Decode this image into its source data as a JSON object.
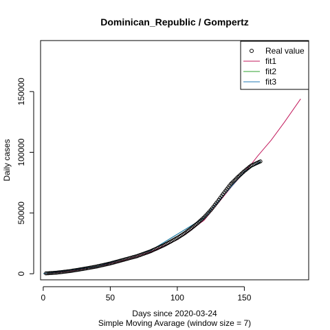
{
  "chart_data": {
    "type": "scatter",
    "title": "Dominican_Republic / Gompertz",
    "xlabel": "Days since 2020-03-24",
    "xlabel_sub": "Simple Moving Avarage (window size = 7)",
    "ylabel": "Daily cases",
    "xlim": [
      -2,
      198
    ],
    "ylim": [
      -5000,
      192000
    ],
    "x_ticks": [
      0,
      50,
      100,
      150
    ],
    "y_ticks": [
      0,
      50000,
      100000,
      150000
    ],
    "legend_position": "top-right",
    "legend": [
      {
        "label": "Real value",
        "kind": "point",
        "color": "#000000"
      },
      {
        "label": "fit1",
        "kind": "line",
        "color": "#c2185b"
      },
      {
        "label": "fit2",
        "kind": "line",
        "color": "#2ca02c"
      },
      {
        "label": "fit3",
        "kind": "line",
        "color": "#1f77b4"
      }
    ],
    "series": [
      {
        "name": "Real value",
        "kind": "points",
        "color": "#000000",
        "points": [
          [
            2,
            300
          ],
          [
            10,
            900
          ],
          [
            20,
            2200
          ],
          [
            30,
            4000
          ],
          [
            40,
            6000
          ],
          [
            50,
            8500
          ],
          [
            60,
            11500
          ],
          [
            70,
            14500
          ],
          [
            80,
            18500
          ],
          [
            90,
            23500
          ],
          [
            100,
            29500
          ],
          [
            105,
            33000
          ],
          [
            110,
            37000
          ],
          [
            115,
            41500
          ],
          [
            120,
            46500
          ],
          [
            125,
            52500
          ],
          [
            130,
            59500
          ],
          [
            135,
            67000
          ],
          [
            140,
            74000
          ],
          [
            145,
            79500
          ],
          [
            150,
            84500
          ],
          [
            155,
            89000
          ],
          [
            162,
            92500
          ]
        ]
      },
      {
        "name": "fit1",
        "kind": "line",
        "color": "#c2185b",
        "points": [
          [
            0,
            100
          ],
          [
            20,
            2000
          ],
          [
            40,
            5800
          ],
          [
            60,
            11000
          ],
          [
            80,
            18000
          ],
          [
            100,
            28000
          ],
          [
            120,
            44000
          ],
          [
            140,
            71000
          ],
          [
            155,
            90000
          ],
          [
            160,
            97000
          ],
          [
            170,
            110000
          ],
          [
            180,
            125000
          ],
          [
            192,
            144000
          ]
        ]
      },
      {
        "name": "fit2",
        "kind": "line",
        "color": "#2ca02c",
        "points": [
          [
            0,
            100
          ],
          [
            40,
            6000
          ],
          [
            80,
            19000
          ],
          [
            120,
            46000
          ],
          [
            150,
            84000
          ],
          [
            162,
            92000
          ]
        ]
      },
      {
        "name": "fit3",
        "kind": "line",
        "color": "#1f77b4",
        "points": [
          [
            0,
            100
          ],
          [
            40,
            6000
          ],
          [
            80,
            19000
          ],
          [
            120,
            46000
          ],
          [
            150,
            84000
          ],
          [
            162,
            92500
          ]
        ]
      }
    ]
  }
}
